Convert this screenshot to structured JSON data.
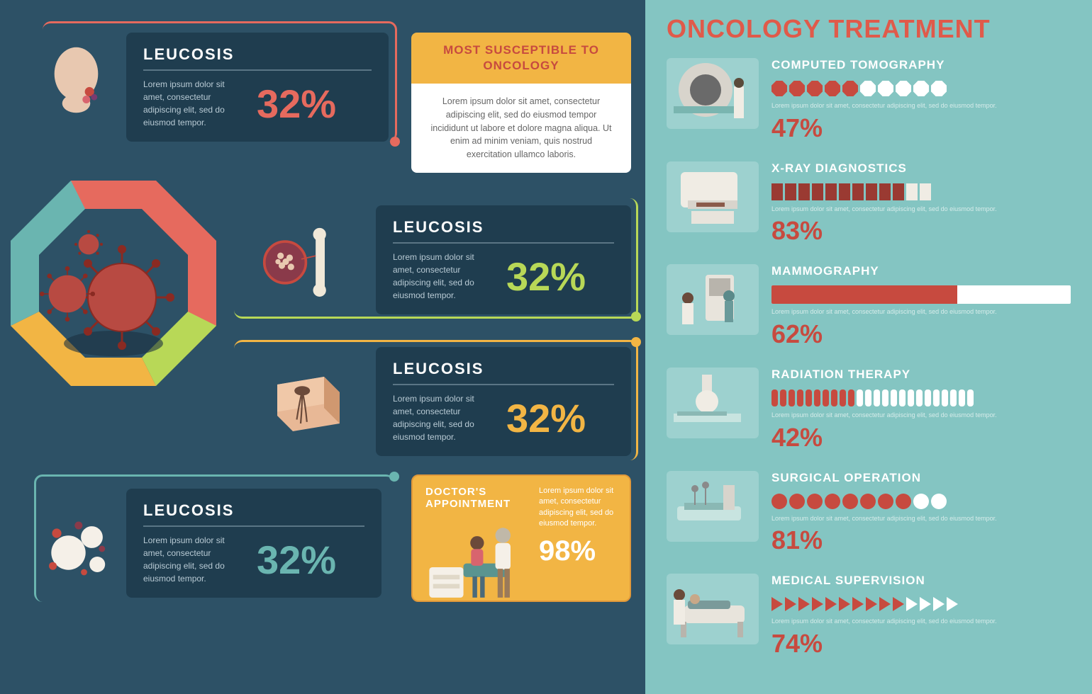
{
  "colors": {
    "red": "#e66a5e",
    "darkred": "#c74a3f",
    "green": "#b8d857",
    "yellow": "#f2b544",
    "teal": "#6ab5b0",
    "bgdark": "#2d5166",
    "card": "#1f3d4f",
    "rightbg": "#84c5c2",
    "white": "#ffffff"
  },
  "susceptible": {
    "title": "MOST SUSCEPTIBLE TO ONCOLOGY",
    "body": "Lorem ipsum dolor sit amet, consectetur adipiscing elit, sed do eiusmod tempor incididunt ut labore et dolore magna aliqua. Ut enim ad minim veniam, quis nostrud exercitation ullamco laboris."
  },
  "cards": [
    {
      "title": "LEUCOSIS",
      "desc": "Lorem ipsum dolor sit amet, consectetur adipiscing elit, sed do eiusmod tempor.",
      "pct": "32%",
      "color": "#e66a5e",
      "icon": "head-icon"
    },
    {
      "title": "LEUCOSIS",
      "desc": "Lorem ipsum dolor sit amet, consectetur adipiscing elit, sed do eiusmod tempor.",
      "pct": "32%",
      "color": "#b8d857",
      "icon": "bone-icon"
    },
    {
      "title": "LEUCOSIS",
      "desc": "Lorem ipsum dolor sit amet, consectetur adipiscing elit, sed do eiusmod tempor.",
      "pct": "32%",
      "color": "#f2b544",
      "icon": "skin-icon"
    },
    {
      "title": "LEUCOSIS",
      "desc": "Lorem ipsum dolor sit amet, consectetur adipiscing elit, sed do eiusmod tempor.",
      "pct": "32%",
      "color": "#6ab5b0",
      "icon": "cells-icon"
    }
  ],
  "doctor": {
    "title": "DOCTOR'S APPOINTMENT",
    "desc": "Lorem ipsum dolor sit amet, consectetur adipiscing elit, sed do eiusmod tempor.",
    "pct": "98%"
  },
  "right_title": "ONCOLOGY TREATMENT",
  "treatments": [
    {
      "title": "COMPUTED TOMOGRAPHY",
      "pct": "47%",
      "value": 47,
      "style": "octagon",
      "total": 10,
      "filled": 5,
      "desc": "Lorem ipsum dolor sit amet, consectetur adipiscing elit, sed do eiusmod tempor."
    },
    {
      "title": "X-RAY DIAGNOSTICS",
      "pct": "83%",
      "value": 83,
      "style": "person",
      "total": 12,
      "filled": 10,
      "desc": "Lorem ipsum dolor sit amet, consectetur adipiscing elit, sed do eiusmod tempor."
    },
    {
      "title": "MAMMOGRAPHY",
      "pct": "62%",
      "value": 62,
      "style": "bar",
      "desc": "Lorem ipsum dolor sit amet, consectetur adipiscing elit, sed do eiusmod tempor."
    },
    {
      "title": "RADIATION THERAPY",
      "pct": "42%",
      "value": 42,
      "style": "segment",
      "total": 24,
      "filled": 10,
      "desc": "Lorem ipsum dolor sit amet, consectetur adipiscing elit, sed do eiusmod tempor."
    },
    {
      "title": "SURGICAL OPERATION",
      "pct": "81%",
      "value": 81,
      "style": "circle",
      "total": 10,
      "filled": 8,
      "desc": "Lorem ipsum dolor sit amet, consectetur adipiscing elit, sed do eiusmod tempor."
    },
    {
      "title": "MEDICAL SUPERVISION",
      "pct": "74%",
      "value": 74,
      "style": "triangle",
      "total": 14,
      "filled": 10,
      "desc": "Lorem ipsum dolor sit amet, consectetur adipiscing elit, sed do eiusmod tempor."
    }
  ],
  "donut_segments": [
    {
      "color": "#e66a5e"
    },
    {
      "color": "#b8d857"
    },
    {
      "color": "#f2b544"
    },
    {
      "color": "#6ab5b0"
    }
  ]
}
